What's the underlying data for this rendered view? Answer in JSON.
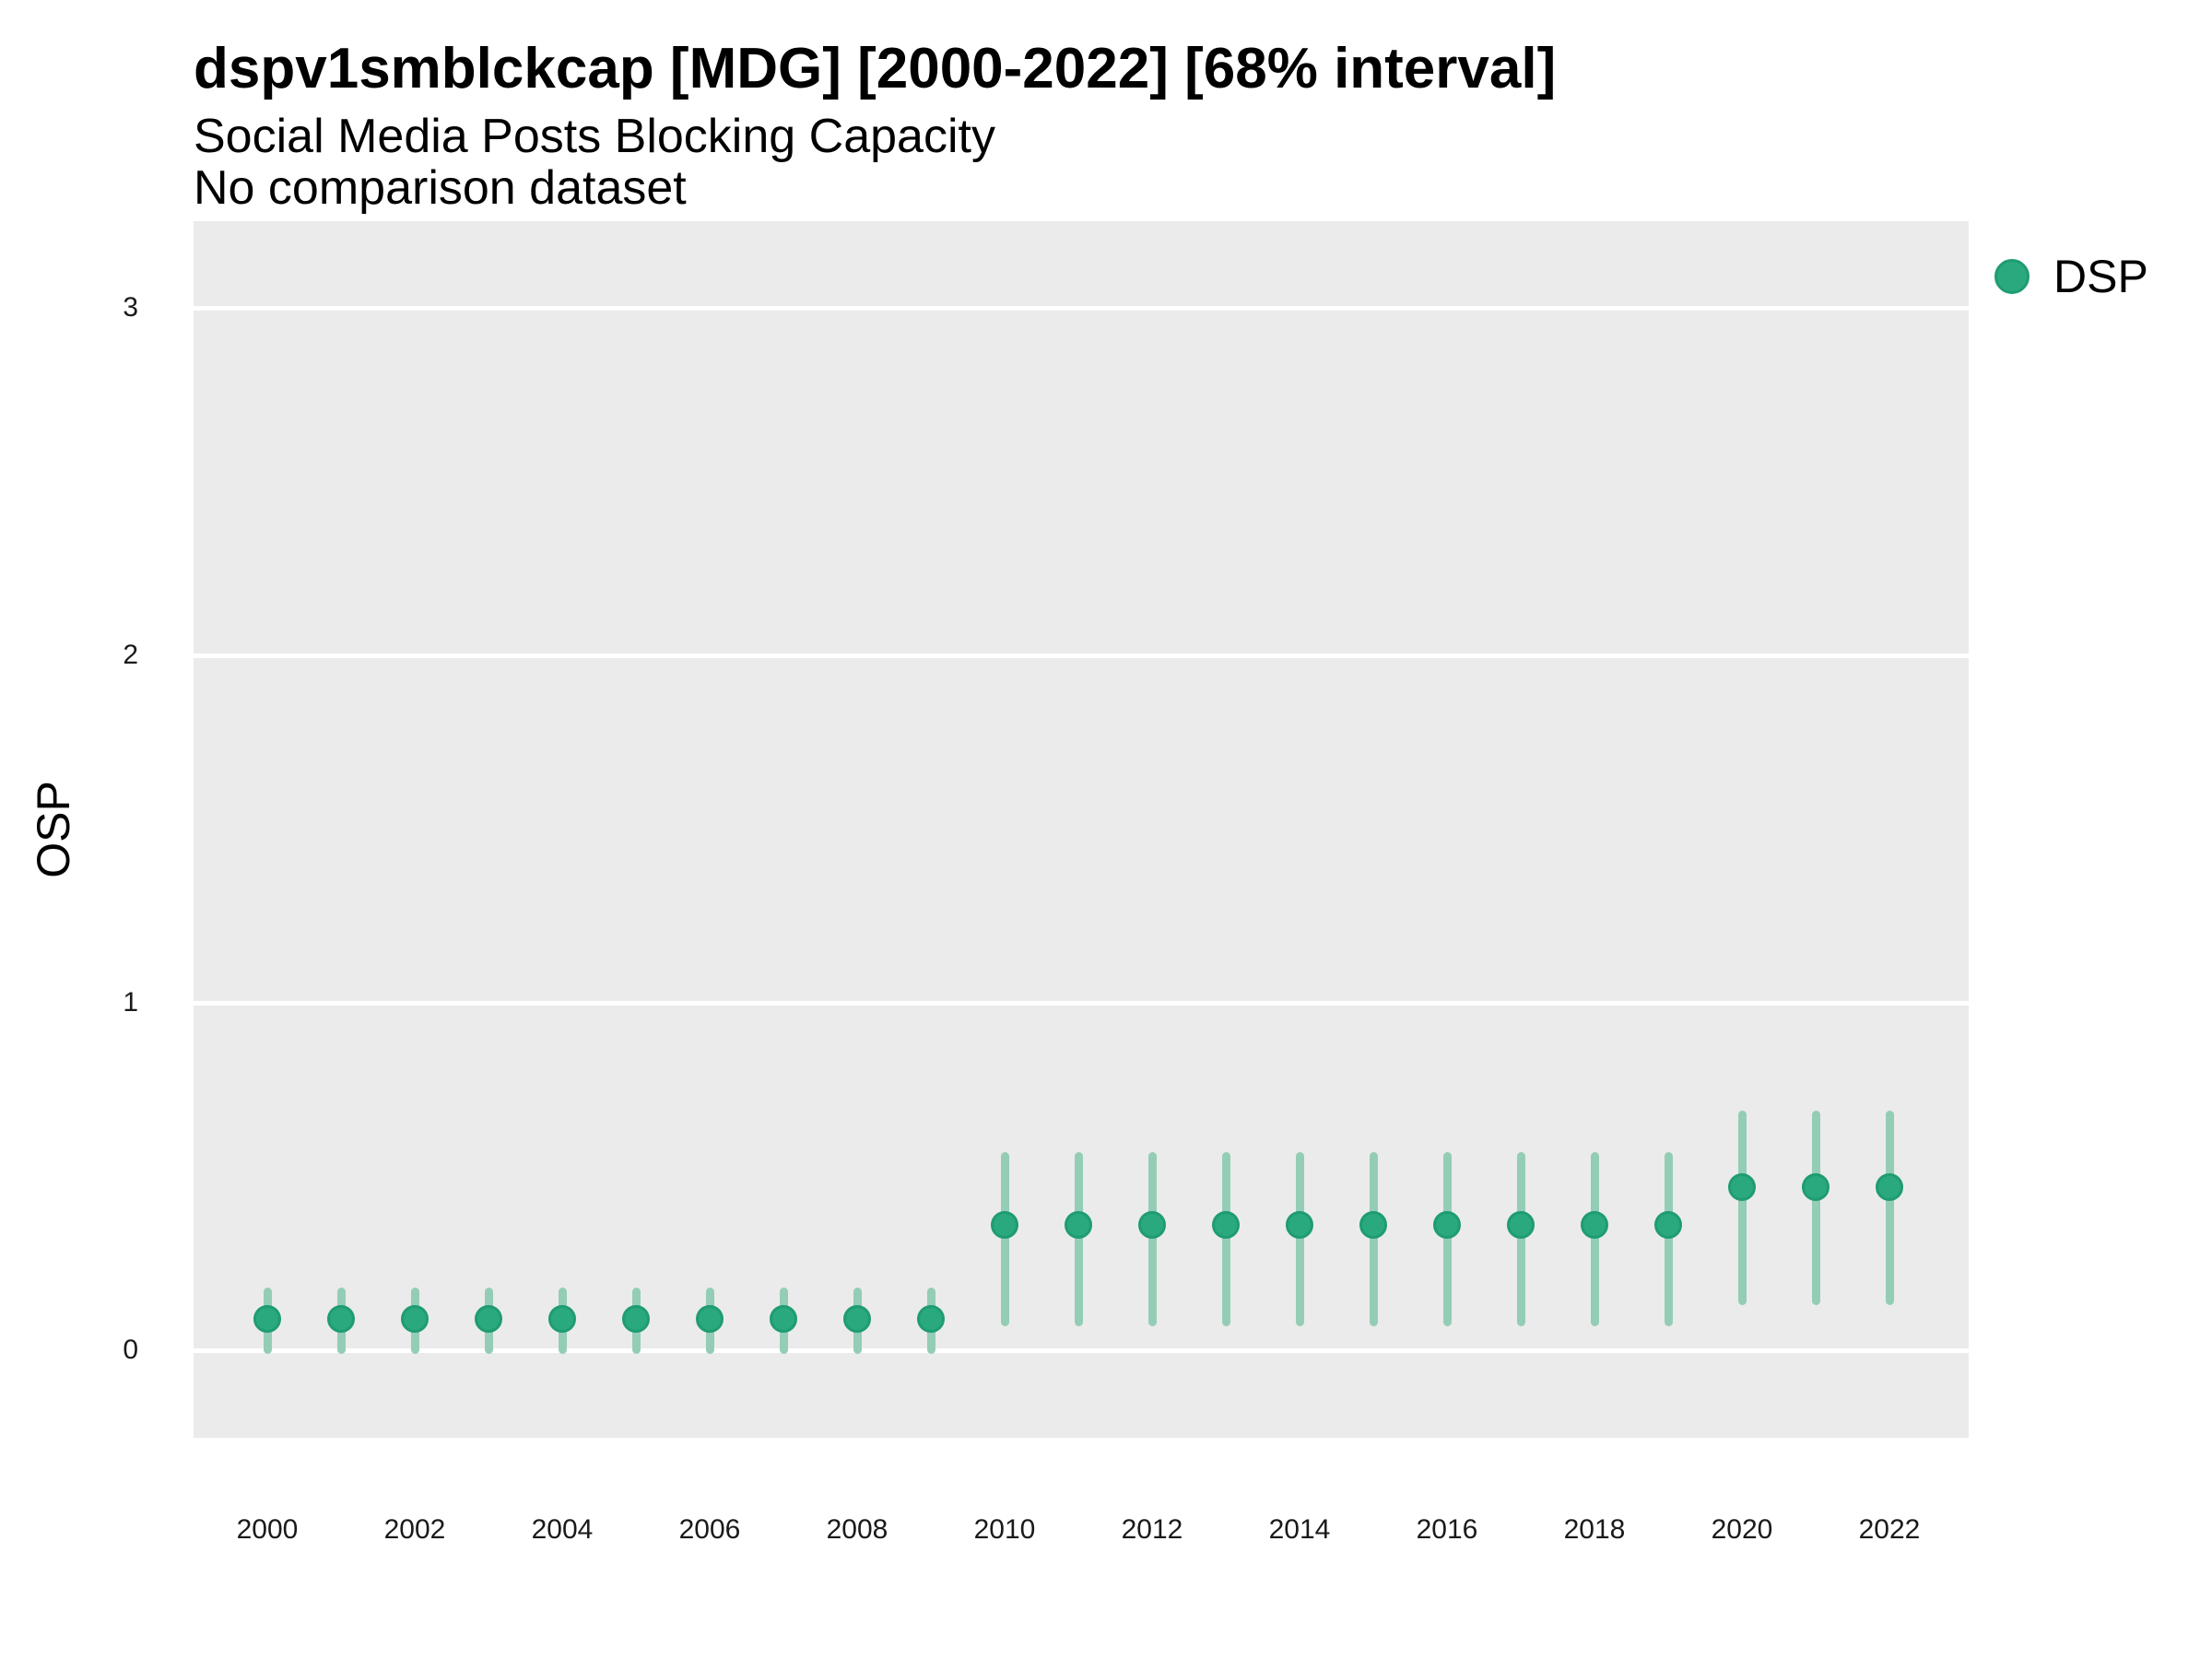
{
  "chart_data": {
    "type": "scatter",
    "mark": "pointrange",
    "title": "dspv1smblckcap [MDG] [2000-2022] [68% interval]",
    "subtitle": "Social Media Posts Blocking Capacity",
    "note": "No comparison dataset",
    "ylabel": "OSP",
    "xlabel": "",
    "interval_label": "68% interval",
    "ylim": [
      -0.25,
      3.25
    ],
    "yticks": [
      0,
      1,
      2,
      3
    ],
    "xticks": [
      2000,
      2002,
      2004,
      2006,
      2008,
      2010,
      2012,
      2014,
      2016,
      2018,
      2020,
      2022
    ],
    "grid": "major-horizontal-only",
    "legend_position": "right-top",
    "legend": [
      {
        "label": "DSP",
        "color": "#2ba97e"
      }
    ],
    "series": [
      {
        "name": "DSP",
        "points": [
          {
            "year": 2000,
            "value": 0.09,
            "lo": -0.01,
            "hi": 0.18
          },
          {
            "year": 2001,
            "value": 0.09,
            "lo": -0.01,
            "hi": 0.18
          },
          {
            "year": 2002,
            "value": 0.09,
            "lo": -0.01,
            "hi": 0.18
          },
          {
            "year": 2003,
            "value": 0.09,
            "lo": -0.01,
            "hi": 0.18
          },
          {
            "year": 2004,
            "value": 0.09,
            "lo": -0.01,
            "hi": 0.18
          },
          {
            "year": 2005,
            "value": 0.09,
            "lo": -0.01,
            "hi": 0.18
          },
          {
            "year": 2006,
            "value": 0.09,
            "lo": -0.01,
            "hi": 0.18
          },
          {
            "year": 2007,
            "value": 0.09,
            "lo": -0.01,
            "hi": 0.18
          },
          {
            "year": 2008,
            "value": 0.09,
            "lo": -0.01,
            "hi": 0.18
          },
          {
            "year": 2009,
            "value": 0.09,
            "lo": -0.01,
            "hi": 0.18
          },
          {
            "year": 2010,
            "value": 0.36,
            "lo": 0.07,
            "hi": 0.57
          },
          {
            "year": 2011,
            "value": 0.36,
            "lo": 0.07,
            "hi": 0.57
          },
          {
            "year": 2012,
            "value": 0.36,
            "lo": 0.07,
            "hi": 0.57
          },
          {
            "year": 2013,
            "value": 0.36,
            "lo": 0.07,
            "hi": 0.57
          },
          {
            "year": 2014,
            "value": 0.36,
            "lo": 0.07,
            "hi": 0.57
          },
          {
            "year": 2015,
            "value": 0.36,
            "lo": 0.07,
            "hi": 0.57
          },
          {
            "year": 2016,
            "value": 0.36,
            "lo": 0.07,
            "hi": 0.57
          },
          {
            "year": 2017,
            "value": 0.36,
            "lo": 0.07,
            "hi": 0.57
          },
          {
            "year": 2018,
            "value": 0.36,
            "lo": 0.07,
            "hi": 0.57
          },
          {
            "year": 2019,
            "value": 0.36,
            "lo": 0.07,
            "hi": 0.57
          },
          {
            "year": 2020,
            "value": 0.47,
            "lo": 0.13,
            "hi": 0.69
          },
          {
            "year": 2021,
            "value": 0.47,
            "lo": 0.13,
            "hi": 0.69
          },
          {
            "year": 2022,
            "value": 0.47,
            "lo": 0.13,
            "hi": 0.69
          }
        ]
      }
    ],
    "colors": {
      "point": "#2ba97e",
      "point_border": "#1f9c71",
      "interval": "#94cdb6",
      "panel_bg": "#ebebeb",
      "gridline": "#ffffff",
      "title_text": "#000000",
      "tick_text": "#1a1a1a"
    }
  }
}
